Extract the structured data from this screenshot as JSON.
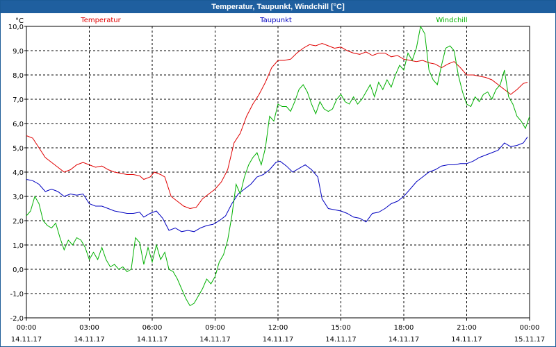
{
  "window": {
    "title": "Temperatur, Taupunkt, Windchill [°C]"
  },
  "chart_data": {
    "type": "line",
    "title": "Temperatur, Taupunkt, Windchill [°C]",
    "ylabel": "°C",
    "ylim": [
      -2.0,
      10.0
    ],
    "yticks": [
      "10,0",
      "9,0",
      "8,0",
      "7,0",
      "6,0",
      "5,0",
      "4,0",
      "3,0",
      "2,0",
      "1,0",
      "0,0",
      "-1,0",
      "-2,0"
    ],
    "xlim_hours": [
      0,
      24
    ],
    "xticks": [
      {
        "time": "00:00",
        "date": "14.11.17"
      },
      {
        "time": "03:00",
        "date": "14.11.17"
      },
      {
        "time": "06:00",
        "date": "14.11.17"
      },
      {
        "time": "09:00",
        "date": "14.11.17"
      },
      {
        "time": "12:00",
        "date": "14.11.17"
      },
      {
        "time": "15:00",
        "date": "14.11.17"
      },
      {
        "time": "18:00",
        "date": "14.11.17"
      },
      {
        "time": "21:00",
        "date": "14.11.17"
      },
      {
        "time": "00:00",
        "date": "15.11.17"
      }
    ],
    "grid": true,
    "series": [
      {
        "name": "Temperatur",
        "color": "#e00000",
        "points": [
          [
            0,
            5.5
          ],
          [
            0.3,
            5.4
          ],
          [
            0.6,
            5.0
          ],
          [
            0.9,
            4.6
          ],
          [
            1.2,
            4.4
          ],
          [
            1.5,
            4.2
          ],
          [
            1.8,
            4.0
          ],
          [
            2.1,
            4.1
          ],
          [
            2.4,
            4.3
          ],
          [
            2.7,
            4.4
          ],
          [
            3.0,
            4.3
          ],
          [
            3.3,
            4.2
          ],
          [
            3.6,
            4.25
          ],
          [
            3.9,
            4.1
          ],
          [
            4.2,
            4.0
          ],
          [
            4.5,
            3.95
          ],
          [
            4.8,
            3.9
          ],
          [
            5.1,
            3.9
          ],
          [
            5.4,
            3.85
          ],
          [
            5.6,
            3.7
          ],
          [
            5.9,
            3.8
          ],
          [
            6.1,
            4.0
          ],
          [
            6.4,
            3.9
          ],
          [
            6.6,
            3.8
          ],
          [
            6.9,
            3.0
          ],
          [
            7.2,
            2.8
          ],
          [
            7.5,
            2.6
          ],
          [
            7.8,
            2.5
          ],
          [
            8.1,
            2.55
          ],
          [
            8.4,
            2.9
          ],
          [
            8.7,
            3.1
          ],
          [
            9.0,
            3.3
          ],
          [
            9.3,
            3.6
          ],
          [
            9.6,
            4.1
          ],
          [
            9.9,
            5.2
          ],
          [
            10.2,
            5.6
          ],
          [
            10.5,
            6.3
          ],
          [
            10.8,
            6.8
          ],
          [
            11.1,
            7.2
          ],
          [
            11.4,
            7.7
          ],
          [
            11.7,
            8.3
          ],
          [
            12.0,
            8.6
          ],
          [
            12.3,
            8.6
          ],
          [
            12.6,
            8.65
          ],
          [
            12.9,
            8.9
          ],
          [
            13.2,
            9.1
          ],
          [
            13.5,
            9.25
          ],
          [
            13.8,
            9.2
          ],
          [
            14.1,
            9.3
          ],
          [
            14.4,
            9.2
          ],
          [
            14.7,
            9.1
          ],
          [
            15.0,
            9.15
          ],
          [
            15.3,
            9.0
          ],
          [
            15.6,
            8.9
          ],
          [
            15.9,
            8.85
          ],
          [
            16.2,
            8.95
          ],
          [
            16.5,
            8.8
          ],
          [
            16.8,
            8.9
          ],
          [
            17.1,
            8.9
          ],
          [
            17.4,
            8.75
          ],
          [
            17.7,
            8.8
          ],
          [
            18.0,
            8.65
          ],
          [
            18.3,
            8.6
          ],
          [
            18.6,
            8.55
          ],
          [
            18.9,
            8.6
          ],
          [
            19.2,
            8.5
          ],
          [
            19.5,
            8.45
          ],
          [
            19.8,
            8.3
          ],
          [
            20.1,
            8.45
          ],
          [
            20.4,
            8.55
          ],
          [
            20.7,
            8.3
          ],
          [
            21.0,
            8.0
          ],
          [
            21.3,
            8.0
          ],
          [
            21.6,
            7.95
          ],
          [
            21.9,
            7.9
          ],
          [
            22.2,
            7.8
          ],
          [
            22.5,
            7.6
          ],
          [
            22.8,
            7.4
          ],
          [
            23.1,
            7.2
          ],
          [
            23.4,
            7.4
          ],
          [
            23.7,
            7.65
          ],
          [
            23.9,
            7.7
          ]
        ]
      },
      {
        "name": "Taupunkt",
        "color": "#0000c0",
        "points": [
          [
            0,
            3.7
          ],
          [
            0.3,
            3.65
          ],
          [
            0.6,
            3.5
          ],
          [
            0.9,
            3.2
          ],
          [
            1.2,
            3.3
          ],
          [
            1.5,
            3.2
          ],
          [
            1.8,
            3.0
          ],
          [
            2.1,
            3.1
          ],
          [
            2.4,
            3.05
          ],
          [
            2.7,
            3.1
          ],
          [
            3.0,
            2.7
          ],
          [
            3.3,
            2.6
          ],
          [
            3.6,
            2.6
          ],
          [
            3.9,
            2.5
          ],
          [
            4.2,
            2.4
          ],
          [
            4.5,
            2.35
          ],
          [
            4.8,
            2.3
          ],
          [
            5.1,
            2.3
          ],
          [
            5.4,
            2.35
          ],
          [
            5.6,
            2.15
          ],
          [
            5.9,
            2.3
          ],
          [
            6.2,
            2.4
          ],
          [
            6.5,
            2.1
          ],
          [
            6.8,
            1.6
          ],
          [
            7.1,
            1.7
          ],
          [
            7.4,
            1.55
          ],
          [
            7.7,
            1.6
          ],
          [
            8.0,
            1.55
          ],
          [
            8.3,
            1.7
          ],
          [
            8.6,
            1.8
          ],
          [
            8.9,
            1.85
          ],
          [
            9.2,
            2.0
          ],
          [
            9.5,
            2.2
          ],
          [
            9.8,
            2.7
          ],
          [
            10.1,
            3.1
          ],
          [
            10.4,
            3.3
          ],
          [
            10.7,
            3.5
          ],
          [
            11.0,
            3.8
          ],
          [
            11.3,
            3.9
          ],
          [
            11.6,
            4.1
          ],
          [
            11.9,
            4.4
          ],
          [
            12.1,
            4.45
          ],
          [
            12.4,
            4.25
          ],
          [
            12.7,
            4.0
          ],
          [
            13.0,
            4.15
          ],
          [
            13.3,
            4.3
          ],
          [
            13.6,
            4.1
          ],
          [
            13.9,
            3.8
          ],
          [
            14.1,
            2.9
          ],
          [
            14.4,
            2.5
          ],
          [
            14.7,
            2.45
          ],
          [
            15.0,
            2.4
          ],
          [
            15.3,
            2.3
          ],
          [
            15.6,
            2.15
          ],
          [
            15.9,
            2.1
          ],
          [
            16.2,
            1.95
          ],
          [
            16.5,
            2.3
          ],
          [
            16.8,
            2.35
          ],
          [
            17.1,
            2.5
          ],
          [
            17.4,
            2.7
          ],
          [
            17.7,
            2.8
          ],
          [
            18.0,
            3.0
          ],
          [
            18.3,
            3.3
          ],
          [
            18.6,
            3.6
          ],
          [
            18.9,
            3.8
          ],
          [
            19.2,
            4.0
          ],
          [
            19.5,
            4.1
          ],
          [
            19.8,
            4.25
          ],
          [
            20.1,
            4.3
          ],
          [
            20.4,
            4.3
          ],
          [
            20.7,
            4.35
          ],
          [
            21.0,
            4.35
          ],
          [
            21.3,
            4.45
          ],
          [
            21.6,
            4.6
          ],
          [
            21.9,
            4.7
          ],
          [
            22.2,
            4.8
          ],
          [
            22.5,
            4.9
          ],
          [
            22.8,
            5.2
          ],
          [
            23.1,
            5.05
          ],
          [
            23.4,
            5.1
          ],
          [
            23.7,
            5.2
          ],
          [
            23.9,
            5.45
          ]
        ]
      },
      {
        "name": "Windchill",
        "color": "#00b000",
        "points": [
          [
            0,
            2.2
          ],
          [
            0.2,
            2.4
          ],
          [
            0.4,
            3.0
          ],
          [
            0.6,
            2.7
          ],
          [
            0.8,
            2.0
          ],
          [
            1.0,
            1.8
          ],
          [
            1.2,
            1.7
          ],
          [
            1.4,
            1.9
          ],
          [
            1.6,
            1.3
          ],
          [
            1.8,
            0.8
          ],
          [
            2.0,
            1.2
          ],
          [
            2.2,
            1.0
          ],
          [
            2.4,
            1.3
          ],
          [
            2.6,
            1.2
          ],
          [
            2.8,
            0.9
          ],
          [
            3.0,
            0.4
          ],
          [
            3.2,
            0.7
          ],
          [
            3.4,
            0.4
          ],
          [
            3.6,
            0.9
          ],
          [
            3.8,
            0.4
          ],
          [
            4.0,
            0.1
          ],
          [
            4.2,
            0.2
          ],
          [
            4.4,
            0.0
          ],
          [
            4.6,
            0.1
          ],
          [
            4.8,
            -0.1
          ],
          [
            5.0,
            0.0
          ],
          [
            5.2,
            1.3
          ],
          [
            5.4,
            1.1
          ],
          [
            5.6,
            0.2
          ],
          [
            5.8,
            0.9
          ],
          [
            6.0,
            0.3
          ],
          [
            6.2,
            1.0
          ],
          [
            6.4,
            0.4
          ],
          [
            6.6,
            0.7
          ],
          [
            6.8,
            0.0
          ],
          [
            7.0,
            -0.1
          ],
          [
            7.2,
            -0.4
          ],
          [
            7.4,
            -0.8
          ],
          [
            7.6,
            -1.2
          ],
          [
            7.8,
            -1.5
          ],
          [
            8.0,
            -1.4
          ],
          [
            8.2,
            -1.1
          ],
          [
            8.4,
            -0.8
          ],
          [
            8.6,
            -0.4
          ],
          [
            8.8,
            -0.6
          ],
          [
            9.0,
            -0.3
          ],
          [
            9.2,
            0.3
          ],
          [
            9.4,
            0.6
          ],
          [
            9.6,
            1.2
          ],
          [
            9.8,
            2.2
          ],
          [
            10.0,
            3.5
          ],
          [
            10.2,
            3.1
          ],
          [
            10.4,
            3.8
          ],
          [
            10.6,
            4.3
          ],
          [
            10.8,
            4.6
          ],
          [
            11.0,
            4.8
          ],
          [
            11.2,
            4.3
          ],
          [
            11.4,
            5.0
          ],
          [
            11.6,
            6.3
          ],
          [
            11.8,
            6.1
          ],
          [
            12.0,
            6.8
          ],
          [
            12.2,
            6.7
          ],
          [
            12.4,
            6.7
          ],
          [
            12.6,
            6.5
          ],
          [
            12.8,
            6.9
          ],
          [
            13.0,
            7.4
          ],
          [
            13.2,
            7.6
          ],
          [
            13.4,
            7.3
          ],
          [
            13.6,
            6.8
          ],
          [
            13.8,
            6.4
          ],
          [
            14.0,
            6.9
          ],
          [
            14.2,
            6.6
          ],
          [
            14.4,
            6.5
          ],
          [
            14.6,
            6.6
          ],
          [
            14.8,
            7.0
          ],
          [
            15.0,
            7.2
          ],
          [
            15.2,
            6.9
          ],
          [
            15.4,
            6.8
          ],
          [
            15.6,
            7.1
          ],
          [
            15.8,
            6.8
          ],
          [
            16.0,
            7.0
          ],
          [
            16.2,
            7.3
          ],
          [
            16.4,
            7.6
          ],
          [
            16.6,
            7.1
          ],
          [
            16.8,
            7.7
          ],
          [
            17.0,
            7.4
          ],
          [
            17.2,
            7.8
          ],
          [
            17.4,
            7.5
          ],
          [
            17.6,
            8.0
          ],
          [
            17.8,
            8.4
          ],
          [
            18.0,
            8.2
          ],
          [
            18.2,
            8.9
          ],
          [
            18.4,
            8.6
          ],
          [
            18.6,
            9.1
          ],
          [
            18.8,
            10.0
          ],
          [
            19.0,
            9.7
          ],
          [
            19.2,
            8.2
          ],
          [
            19.4,
            7.8
          ],
          [
            19.6,
            7.6
          ],
          [
            19.8,
            8.4
          ],
          [
            20.0,
            9.1
          ],
          [
            20.2,
            9.2
          ],
          [
            20.4,
            9.0
          ],
          [
            20.6,
            8.0
          ],
          [
            20.8,
            7.3
          ],
          [
            21.0,
            6.8
          ],
          [
            21.2,
            6.7
          ],
          [
            21.4,
            7.1
          ],
          [
            21.6,
            6.9
          ],
          [
            21.8,
            7.2
          ],
          [
            22.0,
            7.3
          ],
          [
            22.2,
            7.0
          ],
          [
            22.4,
            7.4
          ],
          [
            22.6,
            7.6
          ],
          [
            22.8,
            8.2
          ],
          [
            23.0,
            7.1
          ],
          [
            23.2,
            6.8
          ],
          [
            23.4,
            6.3
          ],
          [
            23.6,
            6.1
          ],
          [
            23.8,
            5.8
          ],
          [
            24.0,
            6.3
          ]
        ]
      }
    ]
  }
}
